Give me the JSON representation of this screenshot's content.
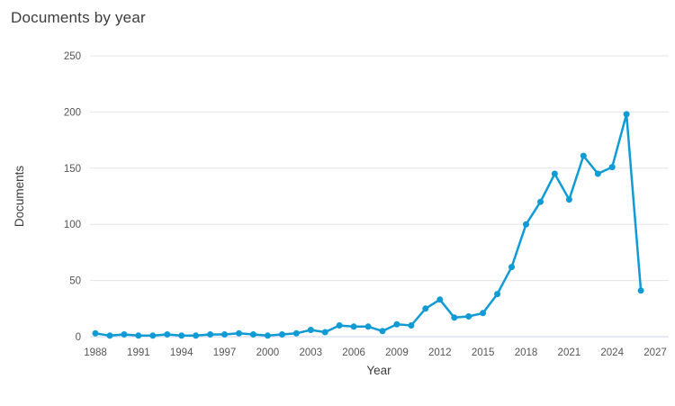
{
  "page": {
    "title": "Documents by year"
  },
  "chart_data": {
    "type": "line",
    "title": "Documents by year",
    "xlabel": "Year",
    "ylabel": "Documents",
    "x": [
      1988,
      1989,
      1990,
      1991,
      1992,
      1993,
      1994,
      1995,
      1996,
      1997,
      1998,
      1999,
      2000,
      2001,
      2002,
      2003,
      2004,
      2005,
      2006,
      2007,
      2008,
      2009,
      2010,
      2011,
      2012,
      2013,
      2014,
      2015,
      2016,
      2017,
      2018,
      2019,
      2020,
      2021,
      2022,
      2023,
      2024,
      2025,
      2026
    ],
    "values": [
      3,
      1,
      2,
      1,
      1,
      2,
      1,
      1,
      2,
      2,
      3,
      2,
      1,
      2,
      3,
      6,
      4,
      10,
      9,
      9,
      5,
      11,
      10,
      25,
      33,
      17,
      18,
      21,
      38,
      62,
      100,
      120,
      145,
      122,
      161,
      145,
      151,
      198,
      41
    ],
    "series_name": "Documents",
    "xlim": [
      1988,
      2027
    ],
    "ylim": [
      0,
      250
    ],
    "xticks": [
      1988,
      1991,
      1994,
      1997,
      2000,
      2003,
      2006,
      2009,
      2012,
      2015,
      2018,
      2021,
      2024,
      2027
    ],
    "yticks": [
      0,
      50,
      100,
      150,
      200,
      250
    ],
    "grid": "horizontal",
    "legend": "none",
    "line_color": "#109bd5",
    "gridline_color": "#e6e6e6",
    "axis_line_color": "#ccd6eb"
  }
}
